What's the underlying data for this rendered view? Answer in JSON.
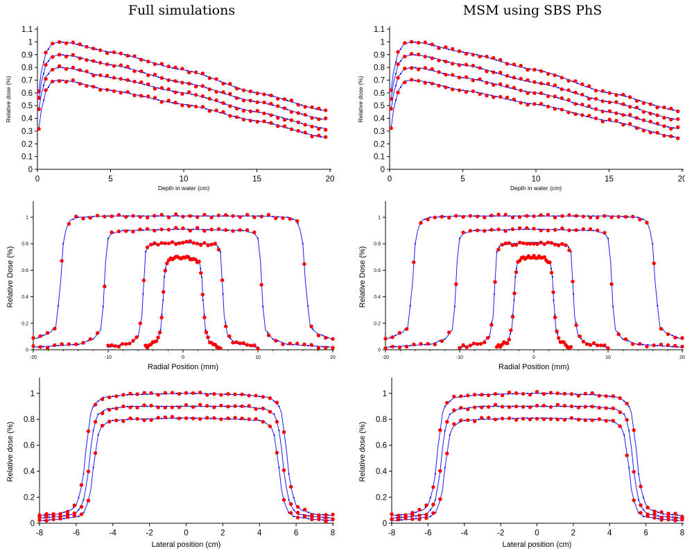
{
  "titles": {
    "left": "Full simulations",
    "right": "MSM using SBS PhS"
  },
  "colors": {
    "simulation_line": "#1a1aff",
    "simulation_marker": "#0000cc",
    "reference_dots": "#ff0000",
    "axis": "#000000"
  },
  "chart_data": [
    {
      "id": "pdd-left",
      "type": "line",
      "xlabel": "Depth in water (cm)",
      "ylabel": "Relative dose (%)",
      "xlim": [
        0,
        20
      ],
      "ylim": [
        0,
        1.1
      ],
      "xticks": [
        0,
        5,
        10,
        15,
        20
      ],
      "yticks": [
        0,
        0.1,
        0.2,
        0.3,
        0.4,
        0.5,
        0.6,
        0.7,
        0.8,
        0.9,
        1,
        1.1
      ],
      "curves": [
        {
          "x": [
            0.1,
            0.3,
            0.6,
            1.0,
            1.5,
            2.0,
            5,
            10,
            15,
            19.7
          ],
          "y": [
            0.62,
            0.79,
            0.92,
            0.985,
            1.0,
            0.995,
            0.92,
            0.78,
            0.6,
            0.46
          ]
        },
        {
          "x": [
            0.1,
            0.3,
            0.6,
            1.0,
            1.5,
            2.0,
            5,
            10,
            15,
            19.7
          ],
          "y": [
            0.55,
            0.7,
            0.83,
            0.885,
            0.9,
            0.895,
            0.82,
            0.68,
            0.53,
            0.39
          ]
        },
        {
          "x": [
            0.1,
            0.3,
            0.6,
            1.0,
            1.5,
            2.0,
            5,
            10,
            15,
            19.7
          ],
          "y": [
            0.47,
            0.61,
            0.73,
            0.785,
            0.8,
            0.795,
            0.72,
            0.6,
            0.45,
            0.32
          ]
        },
        {
          "x": [
            0.1,
            0.3,
            0.6,
            1.0,
            1.5,
            2.0,
            5,
            10,
            15,
            19.7
          ],
          "y": [
            0.32,
            0.49,
            0.62,
            0.69,
            0.7,
            0.695,
            0.62,
            0.51,
            0.38,
            0.25
          ]
        }
      ]
    },
    {
      "id": "pdd-right",
      "type": "line",
      "xlabel": "Depth in water (cm)",
      "ylabel": "Relative dose (%)",
      "xlim": [
        0,
        20
      ],
      "ylim": [
        0,
        1.1
      ],
      "xticks": [
        0,
        5,
        10,
        15,
        20
      ],
      "yticks": [
        0,
        0.1,
        0.2,
        0.3,
        0.4,
        0.5,
        0.6,
        0.7,
        0.8,
        0.9,
        1,
        1.1
      ],
      "curves": [
        {
          "x": [
            0.1,
            0.3,
            0.6,
            1.0,
            1.5,
            2.0,
            5,
            10,
            15,
            19.7
          ],
          "y": [
            0.62,
            0.79,
            0.92,
            0.985,
            1.0,
            0.995,
            0.92,
            0.78,
            0.6,
            0.46
          ]
        },
        {
          "x": [
            0.1,
            0.3,
            0.6,
            1.0,
            1.5,
            2.0,
            5,
            10,
            15,
            19.7
          ],
          "y": [
            0.55,
            0.7,
            0.83,
            0.885,
            0.9,
            0.895,
            0.82,
            0.68,
            0.53,
            0.39
          ]
        },
        {
          "x": [
            0.1,
            0.3,
            0.6,
            1.0,
            1.5,
            2.0,
            5,
            10,
            15,
            19.7
          ],
          "y": [
            0.47,
            0.61,
            0.73,
            0.785,
            0.8,
            0.795,
            0.72,
            0.6,
            0.45,
            0.32
          ]
        },
        {
          "x": [
            0.1,
            0.3,
            0.6,
            1.0,
            1.5,
            2.0,
            5,
            10,
            15,
            19.7
          ],
          "y": [
            0.32,
            0.49,
            0.62,
            0.69,
            0.7,
            0.695,
            0.62,
            0.51,
            0.38,
            0.25
          ]
        }
      ]
    },
    {
      "id": "radial-left",
      "type": "line",
      "xlabel": "Radial Position (mm)",
      "ylabel": "Relative Dose (%)",
      "xlim": [
        -20,
        20
      ],
      "ylim": [
        0,
        1.1
      ],
      "xticks": [
        -20,
        -10,
        0,
        10,
        20
      ],
      "yticks": [
        0,
        0.2,
        0.4,
        0.6,
        0.8,
        1
      ],
      "profiles": [
        {
          "x": [
            -20,
            -18,
            -17,
            -16.5,
            -16,
            -15.5,
            -15,
            -14,
            -10,
            0,
            10,
            14,
            15,
            15.5,
            16,
            16.5,
            17,
            18,
            20
          ],
          "y": [
            0.08,
            0.12,
            0.17,
            0.4,
            0.8,
            0.94,
            0.98,
            1.0,
            1.01,
            1.01,
            1.01,
            1.0,
            0.98,
            0.94,
            0.8,
            0.4,
            0.17,
            0.12,
            0.08
          ]
        },
        {
          "x": [
            -10.5,
            -10,
            -9.5,
            -9,
            -8,
            0,
            8,
            9,
            9.5,
            10,
            10.5
          ],
          "y": [
            0.02,
            0.02,
            0.02,
            0.02,
            0.02,
            0.02,
            0.02,
            0.02,
            0.02,
            0.02,
            0.02
          ],
          "y_override": [
            0.02,
            0.02,
            0.02,
            0.02,
            0.02,
            0.02,
            0.02,
            0.02,
            0.02,
            0.02,
            0.02
          ]
        },
        {
          "x": [
            -20,
            -14,
            -12,
            -11,
            -10.6,
            -10.3,
            -10,
            -9.5,
            -8,
            0,
            8,
            9.5,
            10,
            10.3,
            10.6,
            11,
            12,
            14,
            20
          ],
          "y": [
            0.02,
            0.04,
            0.08,
            0.15,
            0.35,
            0.7,
            0.84,
            0.88,
            0.9,
            0.91,
            0.9,
            0.88,
            0.84,
            0.7,
            0.35,
            0.15,
            0.08,
            0.04,
            0.02
          ]
        },
        {
          "x": [
            -10,
            -7,
            -6,
            -5.5,
            -5.2,
            -5,
            -4.5,
            -3,
            0,
            3,
            4.5,
            5,
            5.2,
            5.5,
            6,
            7,
            10
          ],
          "y": [
            0.02,
            0.05,
            0.1,
            0.25,
            0.55,
            0.74,
            0.79,
            0.8,
            0.81,
            0.8,
            0.79,
            0.74,
            0.55,
            0.25,
            0.1,
            0.05,
            0.02
          ]
        },
        {
          "x": [
            -5,
            -3.5,
            -3,
            -2.7,
            -2.5,
            -2.2,
            -1.5,
            0,
            1.5,
            2.2,
            2.5,
            2.7,
            3,
            3.5,
            5
          ],
          "y": [
            0.02,
            0.06,
            0.15,
            0.35,
            0.55,
            0.66,
            0.69,
            0.7,
            0.69,
            0.66,
            0.55,
            0.35,
            0.15,
            0.06,
            0.02
          ]
        }
      ]
    },
    {
      "id": "radial-right",
      "type": "line",
      "xlabel": "Radial Position (mm)",
      "ylabel": "Relative Dose (%)",
      "xlim": [
        -20,
        20
      ],
      "ylim": [
        0,
        1.1
      ],
      "xticks": [
        -20,
        -10,
        0,
        10,
        20
      ],
      "yticks": [
        0,
        0.2,
        0.4,
        0.6,
        0.8,
        1
      ],
      "profiles": [
        {
          "x": [
            -20,
            -18,
            -17,
            -16.5,
            -16,
            -15.5,
            -15,
            -14,
            -10,
            0,
            10,
            14,
            15,
            15.5,
            16,
            16.5,
            17,
            18,
            20
          ],
          "y": [
            0.08,
            0.12,
            0.17,
            0.4,
            0.8,
            0.94,
            0.98,
            1.0,
            1.01,
            1.01,
            1.01,
            1.0,
            0.98,
            0.94,
            0.8,
            0.4,
            0.17,
            0.12,
            0.08
          ]
        },
        {
          "x": [
            -20,
            -14,
            -12,
            -11,
            -10.6,
            -10.3,
            -10,
            -9.5,
            -8,
            0,
            8,
            9.5,
            10,
            10.3,
            10.6,
            11,
            12,
            14,
            20
          ],
          "y": [
            0.02,
            0.04,
            0.08,
            0.15,
            0.35,
            0.7,
            0.84,
            0.88,
            0.9,
            0.91,
            0.9,
            0.88,
            0.84,
            0.7,
            0.35,
            0.15,
            0.08,
            0.04,
            0.02
          ]
        },
        {
          "x": [
            -10,
            -7,
            -6,
            -5.5,
            -5.2,
            -5,
            -4.5,
            -3,
            0,
            3,
            4.5,
            5,
            5.2,
            5.5,
            6,
            7,
            10
          ],
          "y": [
            0.02,
            0.05,
            0.1,
            0.25,
            0.55,
            0.74,
            0.79,
            0.8,
            0.81,
            0.8,
            0.79,
            0.74,
            0.55,
            0.25,
            0.1,
            0.05,
            0.02
          ]
        },
        {
          "x": [
            -5,
            -3.5,
            -3,
            -2.7,
            -2.5,
            -2.2,
            -1.5,
            0,
            1.5,
            2.2,
            2.5,
            2.7,
            3,
            3.5,
            5
          ],
          "y": [
            0.02,
            0.06,
            0.15,
            0.35,
            0.55,
            0.66,
            0.69,
            0.7,
            0.69,
            0.66,
            0.55,
            0.35,
            0.15,
            0.06,
            0.02
          ]
        }
      ]
    },
    {
      "id": "lateral-left",
      "type": "line",
      "xlabel": "Lateral position (cm)",
      "ylabel": "Relative dose (%)",
      "xlim": [
        -8,
        8
      ],
      "ylim": [
        0,
        1.1
      ],
      "xticks": [
        -8,
        -6,
        -4,
        -2,
        0,
        2,
        4,
        6,
        8
      ],
      "yticks": [
        0,
        0.2,
        0.4,
        0.6,
        0.8,
        1
      ],
      "profiles": [
        {
          "x": [
            -8,
            -7,
            -6.3,
            -6,
            -5.8,
            -5.6,
            -5.4,
            -5.2,
            -5,
            -4.5,
            -3,
            0,
            3,
            4.5,
            5,
            5.2,
            5.4,
            5.6,
            5.8,
            6,
            6.3,
            7,
            8
          ],
          "y": [
            0.06,
            0.07,
            0.1,
            0.14,
            0.22,
            0.38,
            0.65,
            0.85,
            0.92,
            0.97,
            0.99,
            1.0,
            0.99,
            0.97,
            0.92,
            0.85,
            0.65,
            0.38,
            0.22,
            0.14,
            0.1,
            0.07,
            0.06
          ]
        },
        {
          "x": [
            -8,
            -7,
            -6.1,
            -5.8,
            -5.6,
            -5.4,
            -5.2,
            -5.0,
            -4.8,
            -4.3,
            -3,
            0,
            3,
            4.3,
            4.8,
            5.0,
            5.2,
            5.4,
            5.6,
            5.8,
            6.1,
            7,
            8
          ],
          "y": [
            0.04,
            0.05,
            0.07,
            0.11,
            0.18,
            0.32,
            0.58,
            0.77,
            0.84,
            0.88,
            0.9,
            0.9,
            0.9,
            0.88,
            0.84,
            0.77,
            0.58,
            0.32,
            0.18,
            0.11,
            0.07,
            0.05,
            0.04
          ]
        },
        {
          "x": [
            -8,
            -7,
            -5.9,
            -5.6,
            -5.4,
            -5.2,
            -5.0,
            -4.8,
            -4.6,
            -4.1,
            -3,
            0,
            3,
            4.1,
            4.6,
            4.8,
            5.0,
            5.2,
            5.4,
            5.6,
            5.9,
            7,
            8
          ],
          "y": [
            0.02,
            0.03,
            0.05,
            0.08,
            0.14,
            0.26,
            0.5,
            0.68,
            0.75,
            0.79,
            0.8,
            0.81,
            0.8,
            0.79,
            0.75,
            0.68,
            0.5,
            0.26,
            0.14,
            0.08,
            0.05,
            0.03,
            0.02
          ]
        }
      ]
    },
    {
      "id": "lateral-right",
      "type": "line",
      "xlabel": "Lateral position (cm)",
      "ylabel": "Relative dose (%)",
      "xlim": [
        -8,
        8
      ],
      "ylim": [
        0,
        1.1
      ],
      "xticks": [
        -8,
        -6,
        -4,
        -2,
        0,
        2,
        4,
        6,
        8
      ],
      "yticks": [
        0,
        0.2,
        0.4,
        0.6,
        0.8,
        1
      ],
      "profiles": [
        {
          "x": [
            -8,
            -7,
            -6.3,
            -6,
            -5.8,
            -5.6,
            -5.4,
            -5.2,
            -5,
            -4.5,
            -3,
            0,
            3,
            4.5,
            5,
            5.2,
            5.4,
            5.6,
            5.8,
            6,
            6.3,
            7,
            8
          ],
          "y": [
            0.06,
            0.07,
            0.1,
            0.14,
            0.22,
            0.38,
            0.65,
            0.85,
            0.92,
            0.97,
            0.99,
            1.0,
            0.99,
            0.97,
            0.92,
            0.85,
            0.65,
            0.38,
            0.22,
            0.14,
            0.1,
            0.07,
            0.06
          ]
        },
        {
          "x": [
            -8,
            -7,
            -6.1,
            -5.8,
            -5.6,
            -5.4,
            -5.2,
            -5.0,
            -4.8,
            -4.3,
            -3,
            0,
            3,
            4.3,
            4.8,
            5.0,
            5.2,
            5.4,
            5.6,
            5.8,
            6.1,
            7,
            8
          ],
          "y": [
            0.04,
            0.05,
            0.07,
            0.11,
            0.18,
            0.32,
            0.58,
            0.77,
            0.84,
            0.88,
            0.9,
            0.9,
            0.9,
            0.88,
            0.84,
            0.77,
            0.58,
            0.32,
            0.18,
            0.11,
            0.07,
            0.05,
            0.04
          ]
        },
        {
          "x": [
            -8,
            -7,
            -5.9,
            -5.6,
            -5.4,
            -5.2,
            -5.0,
            -4.8,
            -4.6,
            -4.1,
            -3,
            0,
            3,
            4.1,
            4.6,
            4.8,
            5.0,
            5.2,
            5.4,
            5.6,
            5.9,
            7,
            8
          ],
          "y": [
            0.02,
            0.03,
            0.05,
            0.08,
            0.14,
            0.26,
            0.5,
            0.68,
            0.75,
            0.79,
            0.8,
            0.81,
            0.8,
            0.79,
            0.75,
            0.68,
            0.5,
            0.26,
            0.14,
            0.08,
            0.05,
            0.03,
            0.02
          ]
        }
      ]
    }
  ]
}
